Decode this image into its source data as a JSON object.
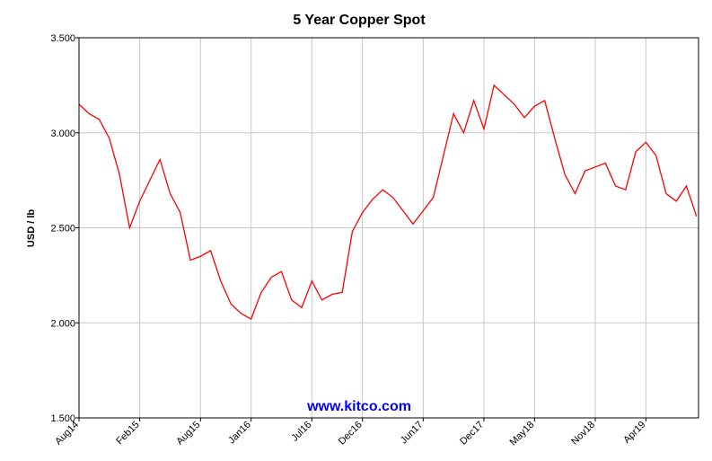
{
  "chart_data": {
    "type": "line",
    "title": "5 Year Copper Spot",
    "y_label": "USD / lb",
    "annotation": "www.kitco.com",
    "x": [
      0,
      1,
      2,
      3,
      4,
      5,
      6,
      7,
      8,
      9,
      10,
      11,
      12,
      13,
      14,
      15,
      16,
      17,
      18,
      19,
      20,
      21,
      22,
      23,
      24,
      25,
      26,
      27,
      28,
      29,
      30,
      31,
      32,
      33,
      34,
      35,
      36,
      37,
      38,
      39,
      40,
      41,
      42,
      43,
      44,
      45,
      46,
      47,
      48,
      49,
      50,
      51,
      52,
      53,
      54,
      55,
      56,
      57,
      58,
      59,
      60,
      61
    ],
    "series": [
      {
        "name": "Copper",
        "color": "#ff0000",
        "values": [
          3.15,
          3.1,
          3.07,
          2.97,
          2.78,
          2.5,
          2.64,
          2.75,
          2.86,
          2.68,
          2.58,
          2.33,
          2.35,
          2.38,
          2.22,
          2.1,
          2.05,
          2.02,
          2.16,
          2.24,
          2.27,
          2.12,
          2.08,
          2.22,
          2.12,
          2.15,
          2.16,
          2.48,
          2.58,
          2.65,
          2.7,
          2.66,
          2.59,
          2.52,
          2.59,
          2.66,
          2.88,
          3.1,
          3.0,
          3.17,
          3.02,
          3.25,
          3.2,
          3.15,
          3.08,
          3.14,
          3.17,
          2.97,
          2.78,
          2.68,
          2.8,
          2.82,
          2.84,
          2.72,
          2.7,
          2.9,
          2.95,
          2.88,
          2.68,
          2.64,
          2.72,
          2.56
        ]
      }
    ],
    "xlim": [
      0,
      61.2
    ],
    "xticks": [
      {
        "value": 0,
        "label": "Aug14"
      },
      {
        "value": 6,
        "label": "Feb15"
      },
      {
        "value": 12,
        "label": "Aug15"
      },
      {
        "value": 17,
        "label": "Jan16"
      },
      {
        "value": 23,
        "label": "Jul16"
      },
      {
        "value": 28,
        "label": "Dec16"
      },
      {
        "value": 34,
        "label": "Jun17"
      },
      {
        "value": 40,
        "label": "Dec17"
      },
      {
        "value": 45,
        "label": "May18"
      },
      {
        "value": 51,
        "label": "Nov18"
      },
      {
        "value": 56,
        "label": "Apr19"
      }
    ],
    "ylim": [
      1.5,
      3.5
    ],
    "yticks": [
      {
        "value": 1.5,
        "label": "1.500"
      },
      {
        "value": 2,
        "label": "2.000"
      },
      {
        "value": 2.5,
        "label": "2.500"
      },
      {
        "value": 3,
        "label": "3.000"
      },
      {
        "value": 3.5,
        "label": "3.500"
      }
    ],
    "grid": true
  }
}
